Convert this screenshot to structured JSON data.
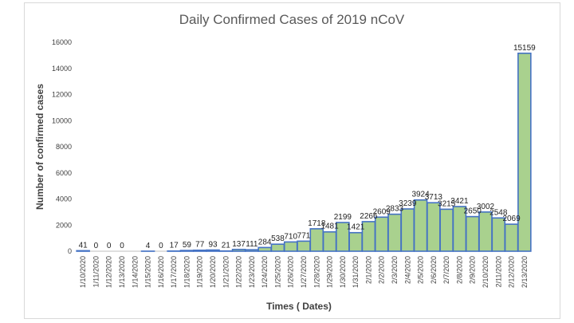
{
  "chart_data": {
    "type": "bar",
    "title": "Daily Confirmed Cases of 2019 nCoV",
    "xlabel": "Times ( Dates)",
    "ylabel": "Number of confirmed cases",
    "ylim": [
      0,
      16000
    ],
    "yticks": [
      "0",
      "2000",
      "4000",
      "6000",
      "8000",
      "10000",
      "12000",
      "14000",
      "16000"
    ],
    "grid": false,
    "categories": [
      "1/10/2020",
      "1/11/2020",
      "1/12/2020",
      "1/13/2020",
      "1/14/2020",
      "1/15/2020",
      "1/16/2020",
      "1/17/2020",
      "1/18/2020",
      "1/19/2020",
      "1/20/2020",
      "1/21/2020",
      "1/22/2020",
      "1/23/2020",
      "1/24/2020",
      "1/25/2020",
      "1/26/2020",
      "1/27/2020",
      "1/28/2020",
      "1/29/2020",
      "1/30/2020",
      "1/31/2020",
      "2/1/2020",
      "2/2/2020",
      "2/3/2020",
      "2/4/2020",
      "2/5/2020",
      "2/6/2020",
      "2/7/2020",
      "2/8/2020",
      "2/9/2020",
      "2/10/2020",
      "2/11/2020",
      "2/12/2020",
      "2/13/2020"
    ],
    "values": [
      41,
      0,
      0,
      0,
      null,
      4,
      0,
      17,
      59,
      77,
      93,
      21,
      137,
      111,
      284,
      538,
      710,
      771,
      1718,
      1481,
      2199,
      1421,
      2266,
      2609,
      2833,
      3239,
      3924,
      3713,
      3215,
      3421,
      2650,
      3002,
      2548,
      2069,
      15159
    ],
    "data_labels": [
      "41",
      "0",
      "0",
      "0",
      "",
      "4",
      "0",
      "17",
      "59",
      "77",
      "93",
      "21",
      "137",
      "111",
      "284",
      "538",
      "710",
      "771",
      "1718",
      "1481",
      "2199",
      "1421",
      "2266",
      "2609",
      "2833",
      "3239",
      "3924",
      "3713",
      "3215",
      "3421",
      "2650",
      "3002",
      "2548",
      "2069",
      "15159"
    ],
    "colors": {
      "bar_fill": "#a9d18e",
      "bar_stroke": "#4472c4"
    }
  }
}
